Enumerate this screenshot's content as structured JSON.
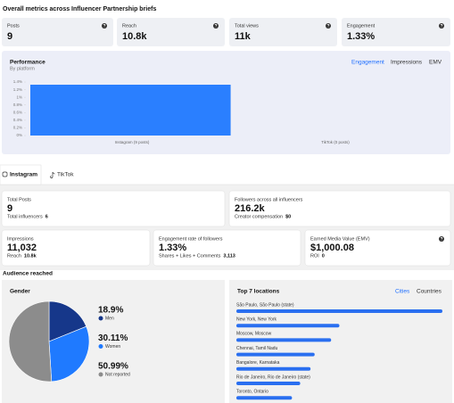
{
  "header": {
    "title": "Overall metrics across Influencer Partnership briefs"
  },
  "summary": [
    {
      "label": "Posts",
      "value": "9"
    },
    {
      "label": "Reach",
      "value": "10.8k"
    },
    {
      "label": "Total views",
      "value": "11k"
    },
    {
      "label": "Engagement",
      "value": "1.33%"
    }
  ],
  "performance": {
    "title": "Performance",
    "subtitle": "By platform",
    "tabs": [
      "Engagement",
      "Impressions",
      "EMV"
    ],
    "active_tab": 0,
    "chart_data": {
      "type": "bar",
      "categories": [
        "Instagram (9 posts)",
        "TikTok (0 posts)"
      ],
      "values": [
        1.33,
        0
      ],
      "color": "#2a7fff",
      "ylim": [
        0,
        1.4
      ],
      "yticks": [
        {
          "value": 0,
          "label": "0%"
        },
        {
          "value": 0.2,
          "label": "0.2%"
        },
        {
          "value": 0.4,
          "label": "0.4%"
        },
        {
          "value": 0.6,
          "label": "0.6%"
        },
        {
          "value": 0.8,
          "label": "0.8%"
        },
        {
          "value": 1,
          "label": "1%"
        },
        {
          "value": 1.2,
          "label": "1.2%"
        },
        {
          "value": 1.4,
          "label": "1.4%"
        }
      ]
    }
  },
  "platform_tabs": [
    "Instagram",
    "TikTok"
  ],
  "active_platform": 0,
  "platform_cards": [
    {
      "label": "Total Posts",
      "value": "9",
      "sub_label": "Total influencers",
      "sub_value": "6"
    },
    {
      "label": "Followers across all influencers",
      "value": "216.2k",
      "sub_label": "Creator compensation",
      "sub_value": "$0"
    },
    {
      "label": "Impressions",
      "value": "11,032",
      "sub_label": "Reach",
      "sub_value": "10.8k"
    },
    {
      "label": "Engagement rate of followers",
      "value": "1.33%",
      "sub_label": "Shares + Likes + Comments",
      "sub_value": "3,113"
    },
    {
      "label": "Earned Media Value (EMV)",
      "value": "$1,000.08",
      "sub_label": "ROI",
      "sub_value": "0"
    }
  ],
  "audience": {
    "title": "Audience reached",
    "gender": {
      "title": "Gender",
      "chart_data": {
        "type": "pie",
        "categories": [
          "Men",
          "Women",
          "Not reported"
        ],
        "values": [
          18.9,
          30.11,
          50.99
        ],
        "value_labels": [
          "18.9%",
          "30.11%",
          "50.99%"
        ],
        "colors": [
          "#16378a",
          "#1f7aff",
          "#8c8c8c"
        ]
      }
    },
    "locations": {
      "title": "Top 7 locations",
      "tabs": [
        "Cities",
        "Countries"
      ],
      "active_tab": 0,
      "chart_data": {
        "type": "bar",
        "orientation": "horizontal",
        "categories": [
          "São Paulo, São Paulo (state)",
          "New York, New York",
          "Moscow, Moscow",
          "Chennai, Tamil Nadu",
          "Bangalore, Karnataka",
          "Rio de Janeiro, Rio de Janeiro (state)",
          "Toronto, Ontario"
        ],
        "values": [
          100,
          50,
          46,
          38,
          36,
          31,
          27
        ],
        "xlim": [
          0,
          100
        ],
        "color": "#2a6ff0"
      }
    }
  }
}
